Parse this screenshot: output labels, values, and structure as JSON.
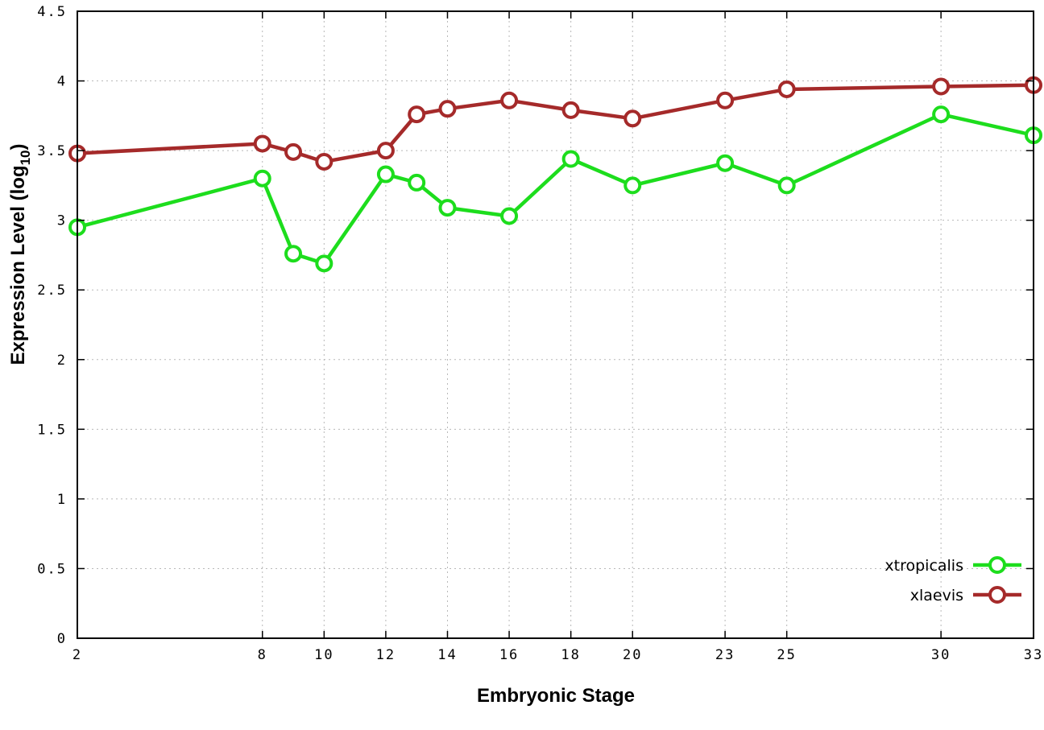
{
  "chart": {
    "ylabel_main": "Expression Level (log",
    "ylabel_sub": "10",
    "ylabel_close": ")"
  },
  "chart_data": {
    "type": "line",
    "title": "",
    "xlabel": "Embryonic Stage",
    "ylabel": "Expression Level (log10)",
    "x": [
      2,
      8,
      9,
      10,
      12,
      13,
      14,
      16,
      18,
      20,
      23,
      25,
      30,
      33
    ],
    "series": [
      {
        "name": "xtropicalis",
        "color": "#1ddd1d",
        "values": [
          2.95,
          3.3,
          2.76,
          2.69,
          3.33,
          3.27,
          3.09,
          3.03,
          3.44,
          3.25,
          3.41,
          3.25,
          3.76,
          3.61
        ]
      },
      {
        "name": "xlaevis",
        "color": "#a52a2a",
        "values": [
          3.48,
          3.55,
          3.49,
          3.42,
          3.5,
          3.76,
          3.8,
          3.86,
          3.79,
          3.73,
          3.86,
          3.94,
          3.96,
          3.97
        ]
      }
    ],
    "xticks": [
      2,
      8,
      10,
      12,
      14,
      16,
      18,
      20,
      23,
      25,
      30,
      33
    ],
    "yticks": [
      0,
      0.5,
      1,
      1.5,
      2,
      2.5,
      3,
      3.5,
      4,
      4.5
    ],
    "xlim": [
      2,
      33
    ],
    "ylim": [
      0,
      4.5
    ],
    "grid": true,
    "grid_color": "#b8b8b8",
    "border_color": "#000000",
    "marker": "open-circle",
    "legend_position": "bottom-right"
  }
}
